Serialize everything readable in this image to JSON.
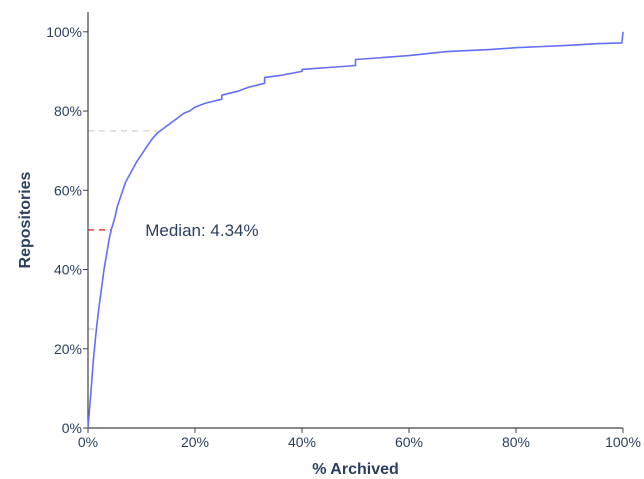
{
  "chart_data": {
    "type": "line",
    "title": "",
    "xlabel": "% Archived",
    "ylabel": "Repositories",
    "xlim": [
      0,
      100
    ],
    "ylim": [
      0,
      105
    ],
    "grid": false,
    "x_ticks": [
      {
        "value": 0,
        "label": "0%"
      },
      {
        "value": 20,
        "label": "20%"
      },
      {
        "value": 40,
        "label": "40%"
      },
      {
        "value": 60,
        "label": "60%"
      },
      {
        "value": 80,
        "label": "80%"
      },
      {
        "value": 100,
        "label": "100%"
      }
    ],
    "y_ticks": [
      {
        "value": 0,
        "label": "0%"
      },
      {
        "value": 20,
        "label": "20%"
      },
      {
        "value": 40,
        "label": "40%"
      },
      {
        "value": 60,
        "label": "60%"
      },
      {
        "value": 80,
        "label": "80%"
      },
      {
        "value": 100,
        "label": "100%"
      }
    ],
    "series": [
      {
        "color": "#636efa",
        "x": [
          0,
          0.3,
          0.6,
          1.0,
          1.5,
          2.0,
          2.5,
          3.0,
          3.5,
          4.0,
          4.34,
          5.0,
          5.5,
          6.0,
          7.0,
          8.0,
          9.0,
          10.0,
          11.0,
          12.0,
          13.0,
          14.0,
          15.0,
          16.0,
          17.0,
          18.0,
          19.0,
          20.0,
          22.0,
          25.0,
          25.0,
          28.0,
          30.0,
          33.0,
          33.0,
          36.0,
          40.0,
          40.0,
          45.0,
          50.0,
          50.0,
          55.0,
          60.0,
          67.0,
          75.0,
          80.0,
          85.0,
          90.0,
          95.0,
          99.8,
          100.0
        ],
        "y": [
          0,
          5,
          10,
          17,
          24,
          30,
          35,
          40,
          44,
          48,
          50,
          53,
          56,
          58,
          62,
          64.5,
          67,
          69,
          71,
          73,
          74.5,
          75.5,
          76.5,
          77.5,
          78.5,
          79.5,
          80,
          81,
          82,
          83,
          84,
          85,
          86,
          87,
          88.5,
          89,
          90,
          90.5,
          91,
          91.5,
          93,
          93.5,
          94,
          95,
          95.5,
          96,
          96.3,
          96.6,
          97,
          97.2,
          100
        ]
      }
    ],
    "reference_lines": [
      {
        "y": 25,
        "x_end": 1.7,
        "color": "#d9d9d9",
        "dash": true
      },
      {
        "y": 50,
        "x_end": 4.34,
        "color": "#ef3d3d",
        "dash": true
      },
      {
        "y": 75,
        "x_end": 13.0,
        "color": "#d9d9d9",
        "dash": true
      }
    ],
    "annotations": [
      {
        "text": "Median: 4.34%",
        "x": 4.34,
        "y": 50
      }
    ],
    "colors": {
      "line": "#636efa",
      "text": "#2a3f5f",
      "axis": "#444444",
      "median": "#ef3d3d",
      "quartile": "#d9d9d9"
    }
  }
}
